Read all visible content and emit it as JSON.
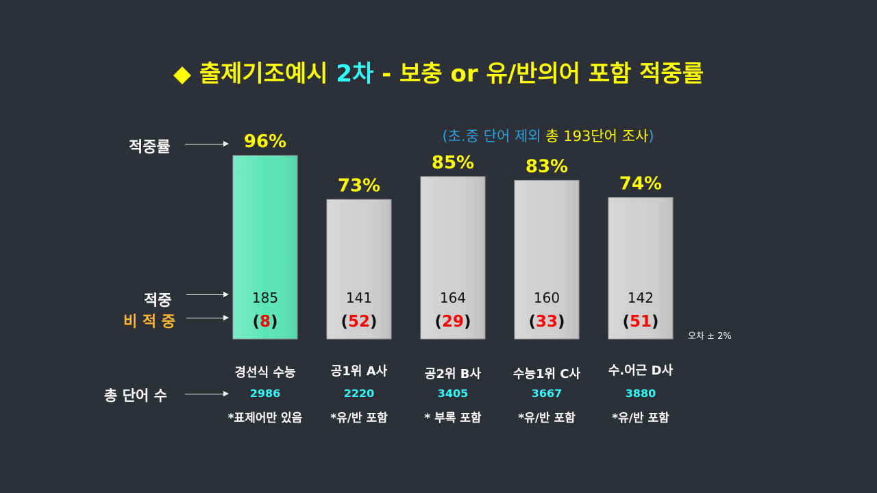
{
  "title_parts": {
    "prefix": "◆ 출제기조예시 ",
    "highlight": "2차",
    "suffix": " - 보충 or 유/반의어 포함 적중률"
  },
  "subtitle_parts": {
    "open": "(",
    "blue_text": "초.중 단어 제외",
    "yellow_text": " 총 193단어 조사",
    "close": ")"
  },
  "labels": {
    "rate": "적중률",
    "hit": "적중",
    "miss": "비 적 중",
    "total": "총 단어 수"
  },
  "error_note": "오차 ± 2%",
  "colors": {
    "background": "#2d3036",
    "highlight_bar": "#5ce6b8",
    "bar": "#cfcfcf",
    "pct_text": "#ffff00",
    "miss_text": "#ff0000",
    "total_text": "#33ffff"
  },
  "chart_data": {
    "type": "bar",
    "categories": [
      "경선식 수능",
      "공1위 A사",
      "공2위 B사",
      "수능1위 C사",
      "수.어근 D사"
    ],
    "values": [
      96,
      73,
      85,
      83,
      74
    ],
    "value_labels": [
      "96%",
      "73%",
      "85%",
      "83%",
      "74%"
    ],
    "hits": [
      "185",
      "141",
      "164",
      "160",
      "142"
    ],
    "misses": [
      "8",
      "52",
      "29",
      "33",
      "51"
    ],
    "totals": [
      "2986",
      "2220",
      "3405",
      "3667",
      "3880"
    ],
    "notes": [
      "*표제어만 있음",
      "*유/반 포함",
      "* 부록 포함",
      "*유/반 포함",
      "*유/반 포함"
    ],
    "highlight_index": 0,
    "ylim": [
      0,
      100
    ]
  }
}
